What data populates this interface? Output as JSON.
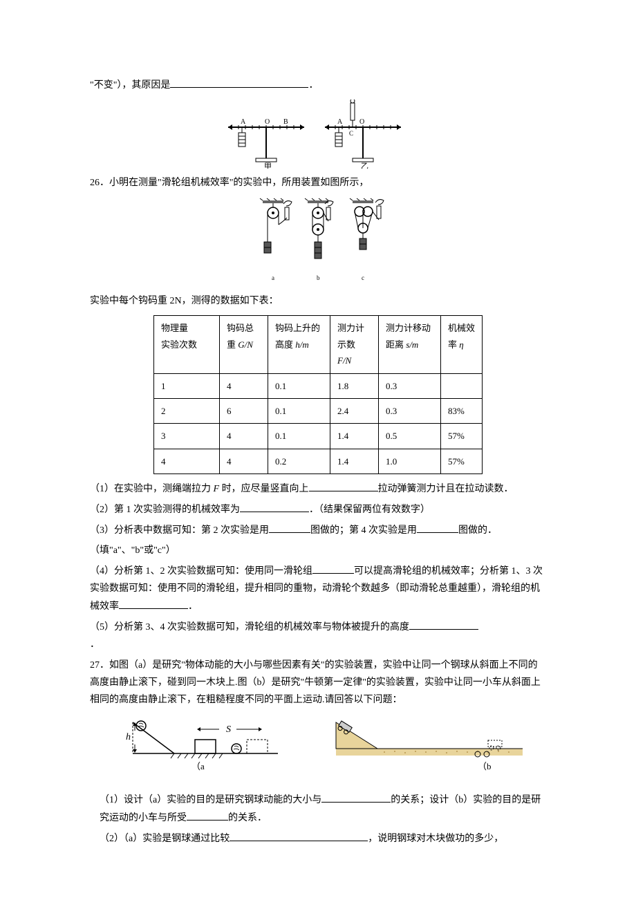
{
  "header": {
    "text_prefix": "\"不变\"），其原因是",
    "period": "．"
  },
  "q26": {
    "number": "26．",
    "intro": "小明在测量\"滑轮组机械效率\"的实验中，所用装置如图所示，",
    "data_intro": "实验中每个钩码重 2N，测得的数据如下表：",
    "table": {
      "headers": [
        "物理量\n实验次数",
        "钩码总重 ",
        "钩码上升的高度 ",
        "测力计示数 ",
        "测力计移动距离 ",
        "机械效率 "
      ],
      "header_units": [
        "",
        "G/N",
        "h/m",
        "F/N",
        "s/m",
        "η"
      ],
      "rows": [
        [
          "1",
          "4",
          "0.1",
          "1.8",
          "0.3",
          ""
        ],
        [
          "2",
          "6",
          "0.1",
          "2.4",
          "0.3",
          "83%"
        ],
        [
          "3",
          "4",
          "0.1",
          "1.4",
          "0.5",
          "57%"
        ],
        [
          "4",
          "4",
          "0.2",
          "1.4",
          "1.0",
          "57%"
        ]
      ]
    },
    "blanks": {
      "q1_prefix": "（1）在实验中，测绳端拉力 ",
      "q1_f": "F",
      "q1_mid": " 时，应尽量竖直向上",
      "q1_suffix": "拉动弹簧测力计且在拉动读数．",
      "q2_prefix": "（2）第 1 次实验测得的机械效率为",
      "q2_suffix": "．（结果保留两位有效数字）",
      "q3_prefix": "（3）分析表中数据可知：第 2 次实验是用",
      "q3_mid": "图做的；第 4 次实验是用",
      "q3_suffix": "图做的．",
      "q3_hint": "（填\"a\"、\"b\"或\"c\"）",
      "q4_prefix": "（4）分析第 1、2 次实验数据可知：使用同一滑轮组",
      "q4_mid": "可以提高滑轮组的机械效率；分析第 1、3 次实验数据可知：使用不同的滑轮组，提升相同的重物，动滑轮个数越多（即动滑轮总重越重），滑轮组的机械效率",
      "q4_suffix": "．",
      "q5_prefix": "（5）分析第 3、4 次实验数据可知，滑轮组的机械效率与物体被提升的高度",
      "q5_suffix": "．"
    }
  },
  "q27": {
    "number": "27．",
    "intro": "如图（a）是研究\"物体动能的大小与哪些因素有关\"的实验装置，实验中让同一个钢球从斜面上不同的高度由静止滚下，碰到同一木块上.图（b）是研究\"牛顿第一定律\"的实验装置，实验中让同一小车从斜面上相同的高度由静止滚下，在粗糙程度不同的平面上运动.请回答以下问题：",
    "label_h": "h",
    "label_s": "S",
    "label_a": "（a",
    "label_b": "（b",
    "q1_prefix": "（1）设计（a）实验的目的是研究钢球动能的大小与",
    "q1_mid": "的关系；设计（b）实验的目的是研究运动的小车与所受",
    "q1_suffix": "的关系．",
    "q2_prefix": "（2）（a）实验是钢球通过比较",
    "q2_suffix": "，说明钢球对木块做功的多少，"
  },
  "colors": {
    "slope_fill": "#e8d49b",
    "surface_pattern": "#d4b876",
    "cart_color": "#888888"
  }
}
